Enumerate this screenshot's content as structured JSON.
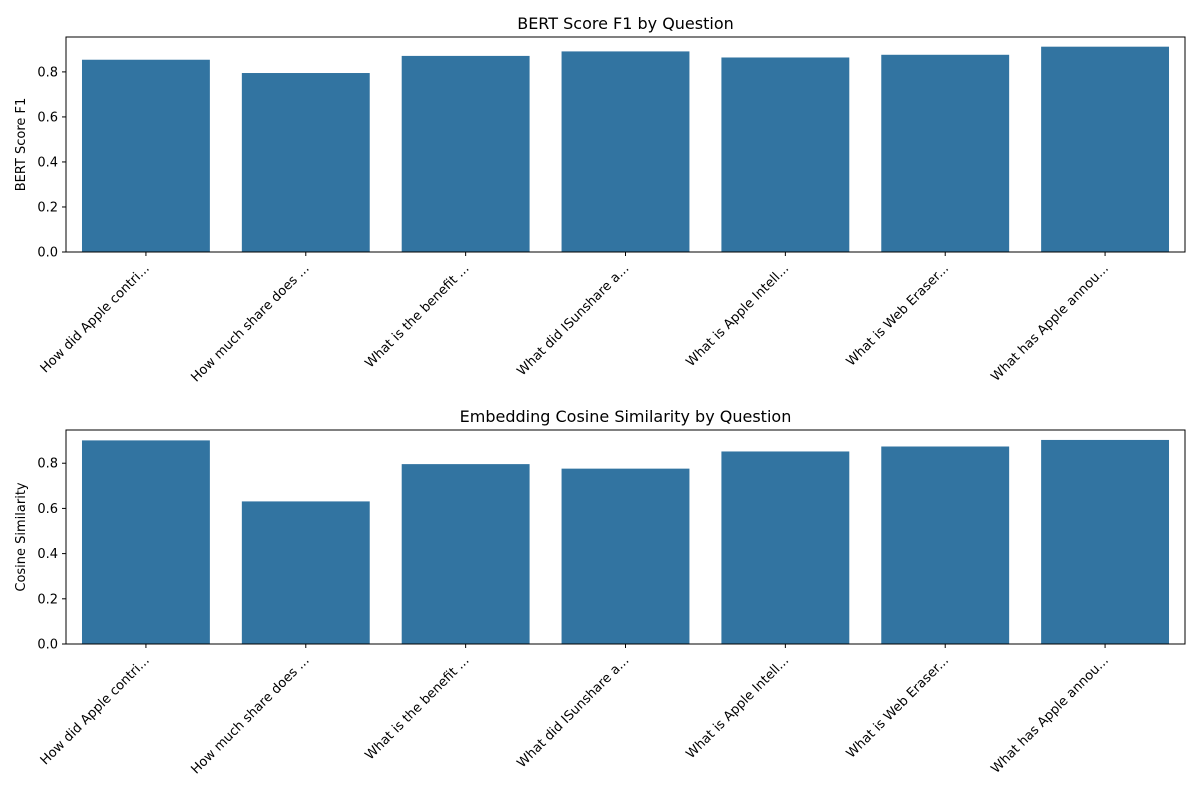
{
  "figure": {
    "bar_color": "#3274a1",
    "axes_color": "#000000"
  },
  "chart_data": [
    {
      "type": "bar",
      "title": "BERT Score F1 by Question",
      "xlabel": "",
      "ylabel": "BERT Score F1",
      "ylim": [
        0,
        0.955
      ],
      "yticks": [
        0.0,
        0.2,
        0.4,
        0.6,
        0.8
      ],
      "ytick_labels": [
        "0.0",
        "0.2",
        "0.4",
        "0.6",
        "0.8"
      ],
      "grid": false,
      "categories": [
        "How did Apple contri...",
        "How much share does ...",
        "What is the benefit ...",
        "What did ISunshare a...",
        "What is Apple Intell...",
        "What is Web Eraser...",
        "What has Apple annou..."
      ],
      "values": [
        0.854,
        0.795,
        0.871,
        0.891,
        0.864,
        0.876,
        0.912
      ]
    },
    {
      "type": "bar",
      "title": "Embedding Cosine Similarity by Question",
      "xlabel": "",
      "ylabel": "Cosine Similarity",
      "ylim": [
        0,
        0.947
      ],
      "yticks": [
        0.0,
        0.2,
        0.4,
        0.6,
        0.8
      ],
      "ytick_labels": [
        "0.0",
        "0.2",
        "0.4",
        "0.6",
        "0.8"
      ],
      "grid": false,
      "categories": [
        "How did Apple contri...",
        "How much share does ...",
        "What is the benefit ...",
        "What did ISunshare a...",
        "What is Apple Intell...",
        "What is Web Eraser...",
        "What has Apple annou..."
      ],
      "values": [
        0.901,
        0.631,
        0.796,
        0.776,
        0.852,
        0.874,
        0.903
      ]
    }
  ]
}
